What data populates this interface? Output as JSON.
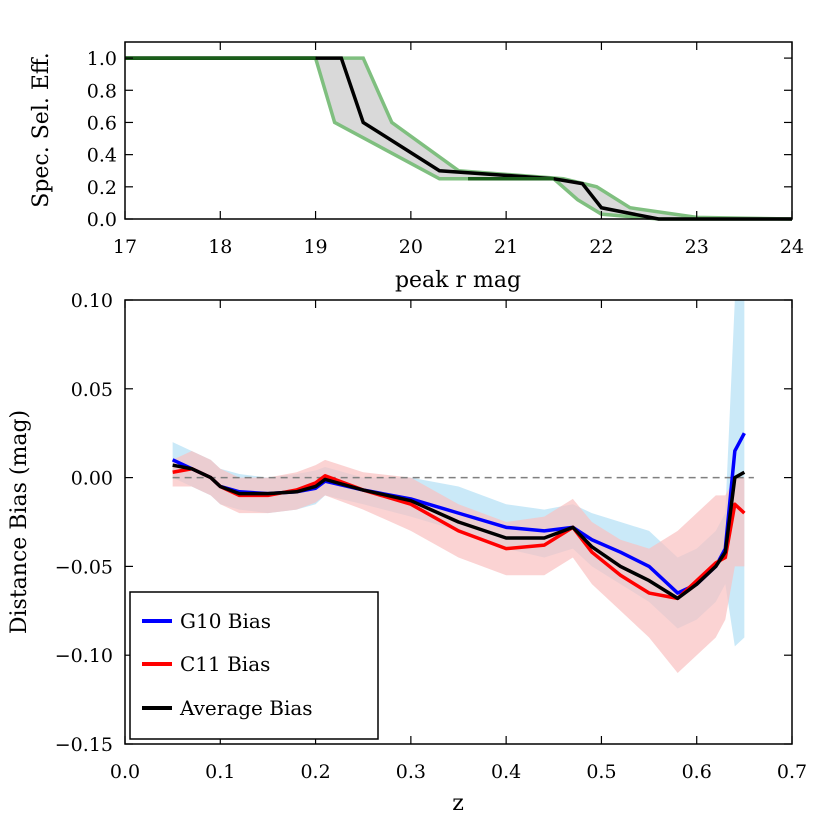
{
  "chart_data": [
    {
      "type": "line",
      "xlabel": "peak r mag",
      "ylabel": "Spec. Sel. Eff.",
      "xlim": [
        17,
        24
      ],
      "ylim": [
        0.0,
        1.1
      ],
      "xticks": [
        "17",
        "18",
        "19",
        "20",
        "21",
        "22",
        "23",
        "24"
      ],
      "yticks": [
        "0.0",
        "0.2",
        "0.4",
        "0.6",
        "0.8",
        "1.0"
      ],
      "colors": {
        "band_fill": "#d9d9d9",
        "band_edge": "#7fbf7f",
        "center": "#000000",
        "overlap": "#1a5e1a"
      },
      "series": [
        {
          "role": "upper-envelope",
          "x": [
            17.0,
            19.5,
            19.8,
            20.5,
            21.6,
            21.95,
            22.3,
            23.0,
            24.0
          ],
          "y": [
            1.0,
            1.0,
            0.6,
            0.3,
            0.25,
            0.2,
            0.07,
            0.01,
            0.0
          ]
        },
        {
          "role": "center",
          "x": [
            17.0,
            19.27,
            19.5,
            20.3,
            21.5,
            21.8,
            22.0,
            22.6,
            23.0,
            24.0
          ],
          "y": [
            1.0,
            1.0,
            0.6,
            0.3,
            0.25,
            0.22,
            0.07,
            0.0,
            0.0,
            0.0
          ]
        },
        {
          "role": "lower-envelope",
          "x": [
            17.0,
            19.0,
            19.2,
            20.3,
            20.5,
            21.5,
            21.75,
            22.0,
            22.6,
            23.0,
            24.0
          ],
          "y": [
            1.0,
            1.0,
            0.6,
            0.25,
            0.25,
            0.25,
            0.12,
            0.03,
            0.0,
            0.0,
            0.0
          ]
        }
      ]
    },
    {
      "type": "line",
      "xlabel": "z",
      "ylabel": "Distance Bias (mag)",
      "xlim": [
        0.0,
        0.7
      ],
      "ylim": [
        -0.15,
        0.1
      ],
      "xticks": [
        "0.0",
        "0.1",
        "0.2",
        "0.3",
        "0.4",
        "0.5",
        "0.6",
        "0.7"
      ],
      "yticks": [
        "−0.15",
        "−0.10",
        "−0.05",
        "0.00",
        "0.05",
        "0.10"
      ],
      "reference_line": {
        "y": 0.0,
        "style": "dashed"
      },
      "legend": {
        "placement": "lower-left"
      },
      "series": [
        {
          "name": "G10 Bias",
          "color": "#0000ff",
          "band_color": "#b3dff5",
          "x": [
            0.05,
            0.07,
            0.09,
            0.1,
            0.12,
            0.15,
            0.18,
            0.2,
            0.21,
            0.25,
            0.3,
            0.35,
            0.4,
            0.44,
            0.47,
            0.49,
            0.52,
            0.55,
            0.58,
            0.6,
            0.62,
            0.63,
            0.64,
            0.65
          ],
          "y": [
            0.01,
            0.005,
            0.0,
            -0.005,
            -0.008,
            -0.009,
            -0.008,
            -0.006,
            -0.002,
            -0.007,
            -0.012,
            -0.02,
            -0.028,
            -0.03,
            -0.028,
            -0.035,
            -0.042,
            -0.05,
            -0.065,
            -0.06,
            -0.05,
            -0.04,
            0.015,
            0.025
          ],
          "band_lower": [
            0.0,
            -0.005,
            -0.01,
            -0.015,
            -0.018,
            -0.02,
            -0.018,
            -0.015,
            -0.01,
            -0.015,
            -0.022,
            -0.03,
            -0.04,
            -0.045,
            -0.04,
            -0.05,
            -0.06,
            -0.07,
            -0.085,
            -0.08,
            -0.07,
            -0.06,
            -0.095,
            -0.09
          ],
          "band_upper": [
            0.02,
            0.015,
            0.01,
            0.005,
            0.002,
            0.0,
            0.002,
            0.004,
            0.006,
            0.0,
            0.0,
            -0.005,
            -0.015,
            -0.018,
            -0.015,
            -0.02,
            -0.025,
            -0.03,
            -0.045,
            -0.04,
            -0.03,
            -0.02,
            0.1,
            0.1
          ]
        },
        {
          "name": "C11 Bias",
          "color": "#ff0000",
          "band_color": "#f9c0c0",
          "x": [
            0.05,
            0.07,
            0.09,
            0.1,
            0.12,
            0.15,
            0.18,
            0.2,
            0.21,
            0.25,
            0.3,
            0.35,
            0.4,
            0.44,
            0.47,
            0.49,
            0.52,
            0.55,
            0.58,
            0.6,
            0.62,
            0.63,
            0.64,
            0.65
          ],
          "y": [
            0.003,
            0.005,
            0.0,
            -0.005,
            -0.01,
            -0.01,
            -0.007,
            -0.003,
            0.001,
            -0.007,
            -0.015,
            -0.03,
            -0.04,
            -0.038,
            -0.028,
            -0.042,
            -0.055,
            -0.065,
            -0.068,
            -0.058,
            -0.048,
            -0.045,
            -0.015,
            -0.02
          ],
          "band_lower": [
            -0.005,
            -0.005,
            -0.01,
            -0.015,
            -0.02,
            -0.02,
            -0.018,
            -0.014,
            -0.01,
            -0.018,
            -0.03,
            -0.045,
            -0.055,
            -0.055,
            -0.045,
            -0.06,
            -0.075,
            -0.09,
            -0.11,
            -0.1,
            -0.09,
            -0.08,
            -0.05,
            -0.05
          ],
          "band_upper": [
            0.01,
            0.015,
            0.01,
            0.005,
            0.0,
            0.0,
            0.003,
            0.007,
            0.01,
            0.003,
            0.0,
            -0.015,
            -0.025,
            -0.022,
            -0.012,
            -0.025,
            -0.035,
            -0.04,
            -0.03,
            -0.02,
            -0.01,
            -0.01,
            0.0,
            0.0
          ]
        },
        {
          "name": "Average Bias",
          "color": "#000000",
          "x": [
            0.05,
            0.07,
            0.09,
            0.1,
            0.12,
            0.15,
            0.18,
            0.2,
            0.21,
            0.25,
            0.3,
            0.35,
            0.4,
            0.44,
            0.47,
            0.49,
            0.52,
            0.55,
            0.58,
            0.6,
            0.62,
            0.63,
            0.64,
            0.65
          ],
          "y": [
            0.007,
            0.005,
            0.0,
            -0.005,
            -0.009,
            -0.009,
            -0.008,
            -0.005,
            -0.001,
            -0.007,
            -0.013,
            -0.025,
            -0.034,
            -0.034,
            -0.028,
            -0.039,
            -0.05,
            -0.058,
            -0.068,
            -0.06,
            -0.05,
            -0.042,
            0.0,
            0.003
          ]
        }
      ]
    }
  ]
}
